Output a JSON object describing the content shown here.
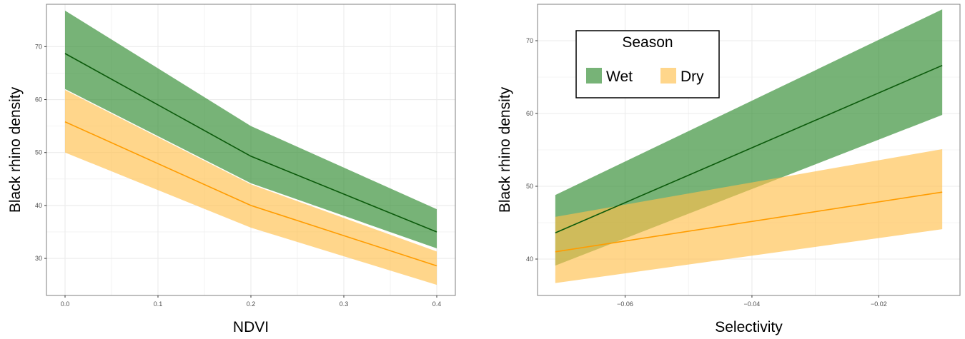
{
  "colors": {
    "wet_fill": "#2e8b2e",
    "wet_line": "#0b5a0b",
    "dry_fill": "#ffc04d",
    "dry_line": "#ff9c00",
    "grid": "#ebebeb",
    "panel_border": "#7f7f7f"
  },
  "legend": {
    "title": "Season",
    "items": [
      {
        "label": "Wet",
        "key": "wet"
      },
      {
        "label": "Dry",
        "key": "dry"
      }
    ]
  },
  "chart_data": [
    {
      "type": "line",
      "xlabel": "NDVI",
      "ylabel": "Black rhino density",
      "xlim": [
        -0.02,
        0.42
      ],
      "ylim": [
        23,
        78
      ],
      "xticks": [
        0.0,
        0.1,
        0.2,
        0.3,
        0.4
      ],
      "xtick_labels": [
        "0.0",
        "0.1",
        "0.2",
        "0.3",
        "0.4"
      ],
      "yticks": [
        30,
        40,
        50,
        60,
        70
      ],
      "ytick_labels": [
        "30",
        "40",
        "50",
        "60",
        "70"
      ],
      "grid": true,
      "series": [
        {
          "name": "Wet",
          "key": "wet",
          "x": [
            0.0,
            0.2,
            0.4
          ],
          "y": [
            68.7,
            49.3,
            35.0
          ],
          "lower": [
            62.0,
            44.2,
            31.9
          ],
          "upper": [
            76.8,
            55.0,
            39.3
          ]
        },
        {
          "name": "Dry",
          "key": "dry",
          "x": [
            0.0,
            0.2,
            0.4
          ],
          "y": [
            55.8,
            40.0,
            28.6
          ],
          "lower": [
            50.0,
            35.8,
            25.0
          ],
          "upper": [
            61.8,
            44.0,
            31.3
          ]
        }
      ]
    },
    {
      "type": "line",
      "xlabel": "Selectivity",
      "ylabel": "Black rhino density",
      "xlim": [
        -0.0738,
        -0.0072
      ],
      "ylim": [
        35,
        75
      ],
      "xticks": [
        -0.06,
        -0.04,
        -0.02
      ],
      "xtick_labels": [
        "−0.06",
        "−0.04",
        "−0.02"
      ],
      "yticks": [
        40,
        50,
        60,
        70
      ],
      "ytick_labels": [
        "40",
        "50",
        "60",
        "70"
      ],
      "grid": true,
      "legend_position": "top-left",
      "series": [
        {
          "name": "Wet",
          "key": "wet",
          "x": [
            -0.071,
            -0.01
          ],
          "y": [
            43.6,
            66.6
          ],
          "lower": [
            39.1,
            59.8
          ],
          "upper": [
            48.8,
            74.3
          ]
        },
        {
          "name": "Dry",
          "key": "dry",
          "x": [
            -0.071,
            -0.01
          ],
          "y": [
            41.0,
            49.2
          ],
          "lower": [
            36.7,
            44.1
          ],
          "upper": [
            45.8,
            55.1
          ]
        }
      ]
    }
  ]
}
